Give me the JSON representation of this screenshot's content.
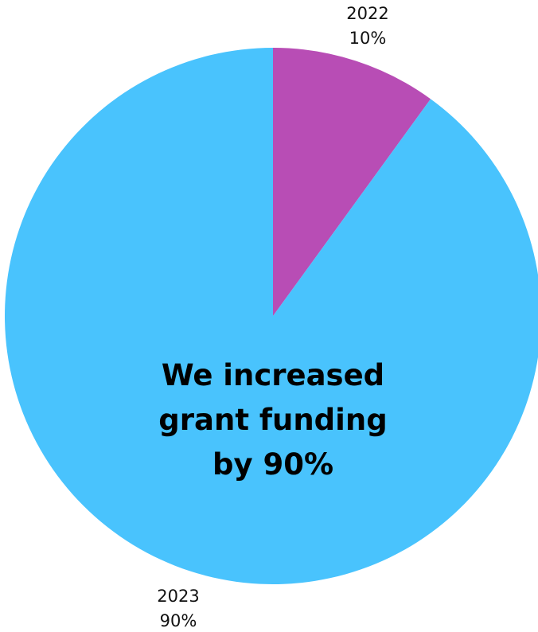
{
  "chart_data": {
    "type": "pie",
    "slices": [
      {
        "category": "2022",
        "value": 10,
        "label": "10%",
        "color": "#B84DB5"
      },
      {
        "category": "2023",
        "value": 90,
        "label": "90%",
        "color": "#49C3FD"
      }
    ],
    "start_angle": "12 o'clock",
    "direction": "clockwise",
    "center_text": [
      "We increased",
      "grant funding",
      "by 90%"
    ]
  }
}
